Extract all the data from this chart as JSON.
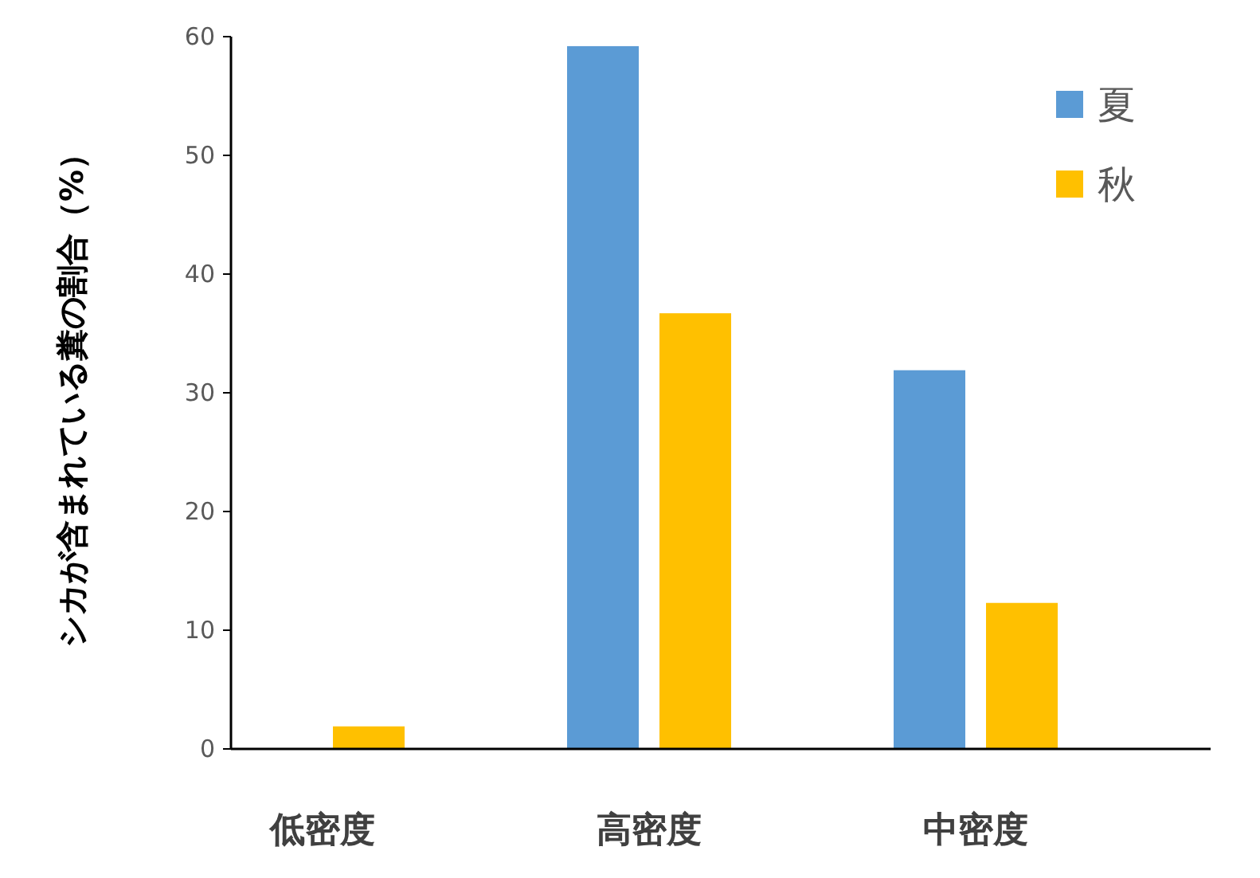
{
  "chart_data": {
    "type": "bar",
    "ylabel": "シカが含まれている糞の割合（%）",
    "categories": [
      "低密度",
      "高密度",
      "中密度"
    ],
    "series": [
      {
        "name": "夏",
        "color": "#5b9bd5",
        "values": [
          0,
          59.2,
          31.9
        ]
      },
      {
        "name": "秋",
        "color": "#ffc000",
        "values": [
          1.9,
          36.7,
          12.3
        ]
      }
    ],
    "ylim": [
      0,
      60
    ],
    "yticks": [
      0,
      10,
      20,
      30,
      40,
      50,
      60
    ],
    "legend": "top right",
    "grid": false
  }
}
